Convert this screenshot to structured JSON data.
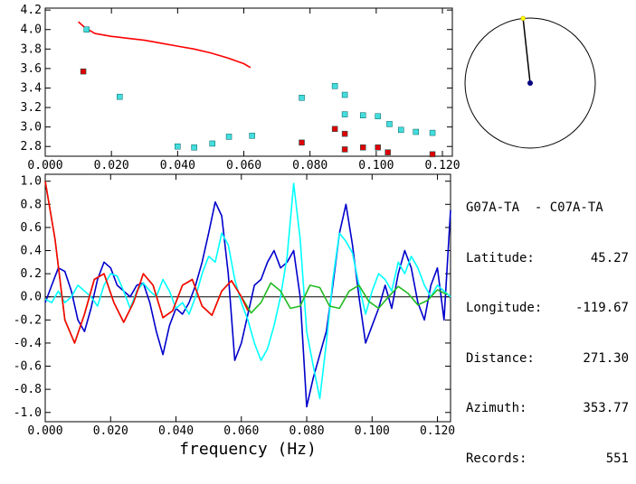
{
  "station_pair": "G07A-TA  - C07A-TA",
  "info": [
    {
      "key": "Latitude:",
      "value": "45.27"
    },
    {
      "key": "Longitude:",
      "value": "-119.67"
    },
    {
      "key": "Distance:",
      "value": "271.30"
    },
    {
      "key": "Azimuth:",
      "value": "353.77"
    },
    {
      "key": "Records:",
      "value": "551"
    }
  ],
  "colors": {
    "red": "#ff0000",
    "dark_red": "#dd0000",
    "cyan": "#00ffff",
    "cyan_marker": "#44dddd",
    "blue": "#0000cc",
    "green": "#22bb22",
    "black": "#000000",
    "yellow": "#ffff00",
    "navy": "#000080"
  },
  "azimuth_deg": 353.77,
  "chart_data": [
    {
      "type": "scatter",
      "title": "",
      "xlabel": "",
      "ylabel": "",
      "xlim": [
        0.0,
        0.123
      ],
      "ylim": [
        2.7,
        4.22
      ],
      "x_ticks": [
        "0.000",
        "0.020",
        "0.040",
        "0.060",
        "0.080",
        "0.100",
        "0.120"
      ],
      "x_tick_values": [
        0.0,
        0.02,
        0.04,
        0.06,
        0.08,
        0.1,
        0.12
      ],
      "y_ticks": [
        "2.8",
        "3.0",
        "3.2",
        "3.4",
        "3.6",
        "3.8",
        "4.0",
        "4.2"
      ],
      "y_tick_values": [
        2.8,
        3.0,
        3.2,
        3.4,
        3.6,
        3.8,
        4.0,
        4.2
      ],
      "series": [
        {
          "name": "model curve",
          "style": "line",
          "color": "red",
          "x": [
            0.01,
            0.012,
            0.015,
            0.02,
            0.025,
            0.03,
            0.035,
            0.04,
            0.045,
            0.05,
            0.055,
            0.06,
            0.062
          ],
          "y": [
            4.08,
            4.02,
            3.96,
            3.93,
            3.91,
            3.89,
            3.86,
            3.83,
            3.8,
            3.76,
            3.71,
            3.65,
            3.61
          ]
        },
        {
          "name": "cyan measurements",
          "style": "square",
          "color": "cyan_marker",
          "x": [
            0.0125,
            0.0225,
            0.04,
            0.045,
            0.0505,
            0.0555,
            0.0625,
            0.0775,
            0.0875,
            0.0905,
            0.0905,
            0.096,
            0.1005,
            0.104,
            0.1075,
            0.112,
            0.117
          ],
          "y": [
            4.0,
            3.31,
            2.8,
            2.79,
            2.83,
            2.9,
            2.91,
            3.3,
            3.42,
            3.33,
            3.13,
            3.12,
            3.11,
            3.03,
            2.97,
            2.95,
            2.94
          ]
        },
        {
          "name": "red measurements",
          "style": "square",
          "color": "dark_red",
          "x": [
            0.0115,
            0.0775,
            0.0875,
            0.0905,
            0.0905,
            0.096,
            0.1005,
            0.1035,
            0.117
          ],
          "y": [
            3.57,
            2.84,
            2.98,
            2.93,
            2.77,
            2.79,
            2.79,
            2.74,
            2.72
          ]
        }
      ]
    },
    {
      "type": "line",
      "title": "",
      "xlabel": "frequency (Hz)",
      "ylabel": "",
      "xlim": [
        0.0,
        0.124
      ],
      "ylim": [
        -1.08,
        1.06
      ],
      "x_ticks": [
        "0.000",
        "0.020",
        "0.040",
        "0.060",
        "0.080",
        "0.100",
        "0.120"
      ],
      "x_tick_values": [
        0.0,
        0.02,
        0.04,
        0.06,
        0.08,
        0.1,
        0.12
      ],
      "y_ticks": [
        "1.0",
        "0.8",
        "0.6",
        "0.4",
        "0.2",
        "0.0",
        "-0.2",
        "-0.4",
        "-0.6",
        "-0.8",
        "-1.0"
      ],
      "y_tick_values": [
        1.0,
        0.8,
        0.6,
        0.4,
        0.2,
        0.0,
        -0.2,
        -0.4,
        -0.6,
        -0.8,
        -1.0
      ],
      "series": [
        {
          "name": "blue observed",
          "color": "blue",
          "x": [
            0.0,
            0.002,
            0.004,
            0.006,
            0.008,
            0.01,
            0.012,
            0.014,
            0.016,
            0.018,
            0.02,
            0.022,
            0.024,
            0.026,
            0.028,
            0.03,
            0.032,
            0.034,
            0.036,
            0.038,
            0.04,
            0.042,
            0.044,
            0.046,
            0.048,
            0.05,
            0.052,
            0.054,
            0.056,
            0.058,
            0.06,
            0.062,
            0.064,
            0.066,
            0.068,
            0.07,
            0.072,
            0.074,
            0.076,
            0.078,
            0.08,
            0.082,
            0.084,
            0.086,
            0.088,
            0.09,
            0.092,
            0.094,
            0.096,
            0.098,
            0.1,
            0.102,
            0.104,
            0.106,
            0.108,
            0.11,
            0.112,
            0.114,
            0.116,
            0.118,
            0.12,
            0.122,
            0.124
          ],
          "y": [
            -0.05,
            0.1,
            0.25,
            0.22,
            0.05,
            -0.2,
            -0.3,
            -0.1,
            0.15,
            0.3,
            0.25,
            0.1,
            0.05,
            0.0,
            0.1,
            0.12,
            -0.05,
            -0.3,
            -0.5,
            -0.25,
            -0.1,
            -0.15,
            -0.05,
            0.1,
            0.3,
            0.55,
            0.82,
            0.7,
            0.2,
            -0.55,
            -0.4,
            -0.15,
            0.1,
            0.15,
            0.3,
            0.4,
            0.25,
            0.3,
            0.4,
            0.0,
            -0.95,
            -0.7,
            -0.5,
            -0.3,
            0.1,
            0.55,
            0.8,
            0.45,
            0.0,
            -0.4,
            -0.25,
            -0.1,
            0.1,
            -0.1,
            0.2,
            0.4,
            0.25,
            -0.05,
            -0.2,
            0.1,
            0.25,
            -0.2,
            0.75
          ]
        },
        {
          "name": "cyan observed",
          "color": "cyan",
          "x": [
            0.0,
            0.002,
            0.004,
            0.006,
            0.008,
            0.01,
            0.012,
            0.014,
            0.016,
            0.018,
            0.02,
            0.022,
            0.024,
            0.026,
            0.028,
            0.03,
            0.032,
            0.034,
            0.036,
            0.038,
            0.04,
            0.042,
            0.044,
            0.046,
            0.048,
            0.05,
            0.052,
            0.054,
            0.056,
            0.058,
            0.06,
            0.062,
            0.064,
            0.066,
            0.068,
            0.07,
            0.072,
            0.074,
            0.076,
            0.078,
            0.08,
            0.082,
            0.084,
            0.086,
            0.088,
            0.09,
            0.092,
            0.094,
            0.096,
            0.098,
            0.1,
            0.102,
            0.104,
            0.106,
            0.108,
            0.11,
            0.112,
            0.114,
            0.116,
            0.118,
            0.12,
            0.122,
            0.124
          ],
          "y": [
            -0.02,
            -0.05,
            0.05,
            -0.05,
            0.0,
            0.1,
            0.05,
            0.0,
            -0.08,
            0.1,
            0.2,
            0.18,
            0.05,
            -0.1,
            0.05,
            0.12,
            0.05,
            0.0,
            0.15,
            0.05,
            -0.1,
            -0.05,
            -0.15,
            0.0,
            0.2,
            0.35,
            0.3,
            0.55,
            0.45,
            0.15,
            -0.05,
            -0.2,
            -0.4,
            -0.55,
            -0.45,
            -0.25,
            0.0,
            0.35,
            0.98,
            0.5,
            -0.3,
            -0.6,
            -0.88,
            -0.4,
            0.15,
            0.55,
            0.48,
            0.38,
            0.1,
            -0.15,
            0.05,
            0.2,
            0.15,
            0.05,
            0.3,
            0.2,
            0.35,
            0.25,
            0.1,
            0.0,
            0.1,
            0.05,
            0.0
          ]
        },
        {
          "name": "green model",
          "color": "green",
          "x": [
            0.0,
            0.003,
            0.006,
            0.009,
            0.012,
            0.015,
            0.018,
            0.021,
            0.024,
            0.027,
            0.03,
            0.033,
            0.036,
            0.039,
            0.042,
            0.045,
            0.048,
            0.051,
            0.054,
            0.057,
            0.06,
            0.063,
            0.066,
            0.069,
            0.072,
            0.075,
            0.078,
            0.081,
            0.084,
            0.087,
            0.09,
            0.093,
            0.096,
            0.099,
            0.102,
            0.105,
            0.108,
            0.111,
            0.114,
            0.117,
            0.12,
            0.123
          ],
          "y": [
            1.0,
            0.5,
            -0.2,
            -0.4,
            -0.15,
            0.15,
            0.2,
            -0.05,
            -0.22,
            -0.05,
            0.2,
            0.1,
            -0.18,
            -0.12,
            0.1,
            0.15,
            -0.08,
            -0.16,
            0.05,
            0.14,
            0.0,
            -0.14,
            -0.05,
            0.12,
            0.05,
            -0.1,
            -0.08,
            0.1,
            0.08,
            -0.08,
            -0.1,
            0.05,
            0.1,
            -0.04,
            -0.1,
            0.0,
            0.09,
            0.03,
            -0.07,
            -0.03,
            0.06,
            0.02
          ]
        },
        {
          "name": "red model",
          "color": "red",
          "x": [
            0.0,
            0.003,
            0.006,
            0.009,
            0.012,
            0.015,
            0.018,
            0.021,
            0.024,
            0.027,
            0.03,
            0.033,
            0.036,
            0.039,
            0.042,
            0.045,
            0.048,
            0.051,
            0.054,
            0.057,
            0.06,
            0.062
          ],
          "y": [
            1.0,
            0.5,
            -0.2,
            -0.4,
            -0.15,
            0.15,
            0.2,
            -0.05,
            -0.22,
            -0.05,
            0.2,
            0.1,
            -0.18,
            -0.12,
            0.1,
            0.15,
            -0.08,
            -0.16,
            0.05,
            0.14,
            0.0,
            -0.12
          ]
        }
      ]
    }
  ]
}
